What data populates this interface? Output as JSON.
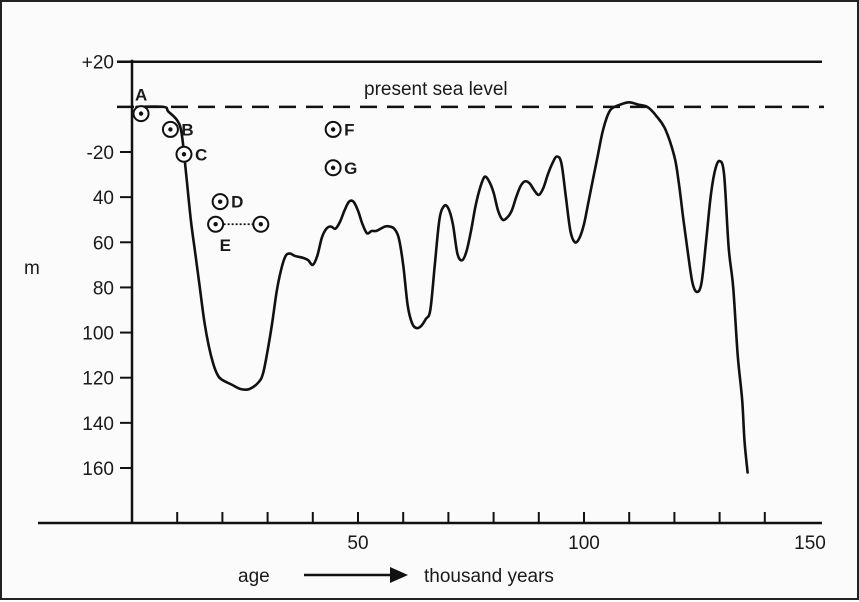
{
  "chart_data": {
    "type": "line",
    "xlabel": "age",
    "xlabel_unit": "thousand years",
    "ylabel": "m",
    "annotation": "present sea level",
    "xlim": [
      0,
      150
    ],
    "ylim": [
      -20,
      170
    ],
    "x_ticks": [
      {
        "value": 50,
        "label": "50"
      },
      {
        "value": 100,
        "label": "100"
      },
      {
        "value": 150,
        "label": "150"
      }
    ],
    "x_minor_ticks": [
      10,
      20,
      30,
      40,
      50,
      60,
      70,
      80,
      90,
      100,
      110,
      120,
      130,
      140
    ],
    "y_ticks": [
      {
        "value": -20,
        "label": "+20"
      },
      {
        "value": 20,
        "label": "-20"
      },
      {
        "value": 40,
        "label": "40"
      },
      {
        "value": 60,
        "label": "60"
      },
      {
        "value": 80,
        "label": "80"
      },
      {
        "value": 100,
        "label": "100"
      },
      {
        "value": 120,
        "label": "120"
      },
      {
        "value": 140,
        "label": "140"
      },
      {
        "value": 160,
        "label": "160"
      }
    ],
    "sea_level": 0,
    "series": [
      {
        "points": [
          [
            1,
            0
          ],
          [
            7,
            0
          ],
          [
            8,
            2
          ],
          [
            10,
            6
          ],
          [
            11,
            12
          ],
          [
            12,
            30
          ],
          [
            13,
            50
          ],
          [
            14,
            65
          ],
          [
            15,
            80
          ],
          [
            16,
            95
          ],
          [
            17,
            106
          ],
          [
            18,
            114
          ],
          [
            19,
            119
          ],
          [
            20,
            121
          ],
          [
            22,
            123
          ],
          [
            24,
            125
          ],
          [
            26,
            125
          ],
          [
            28,
            122
          ],
          [
            29,
            118
          ],
          [
            30,
            108
          ],
          [
            31,
            96
          ],
          [
            32,
            82
          ],
          [
            33,
            72
          ],
          [
            34,
            66
          ],
          [
            35,
            65
          ],
          [
            36,
            66
          ],
          [
            38,
            67
          ],
          [
            39,
            68
          ],
          [
            40,
            70
          ],
          [
            41,
            66
          ],
          [
            42,
            58
          ],
          [
            43,
            54
          ],
          [
            44,
            53
          ],
          [
            45,
            54
          ],
          [
            46,
            51
          ],
          [
            47,
            46
          ],
          [
            48,
            42
          ],
          [
            49,
            42
          ],
          [
            50,
            46
          ],
          [
            51,
            52
          ],
          [
            52,
            56
          ],
          [
            53,
            55
          ],
          [
            54,
            55
          ],
          [
            55,
            54
          ],
          [
            56,
            53
          ],
          [
            57,
            53
          ],
          [
            58,
            54
          ],
          [
            59,
            58
          ],
          [
            60,
            70
          ],
          [
            61,
            88
          ],
          [
            62,
            96
          ],
          [
            63,
            98
          ],
          [
            64,
            97
          ],
          [
            65,
            94
          ],
          [
            66,
            90
          ],
          [
            67,
            70
          ],
          [
            68,
            50
          ],
          [
            69,
            44
          ],
          [
            70,
            45
          ],
          [
            71,
            52
          ],
          [
            72,
            65
          ],
          [
            73,
            68
          ],
          [
            74,
            64
          ],
          [
            75,
            55
          ],
          [
            76,
            44
          ],
          [
            77,
            36
          ],
          [
            78,
            31
          ],
          [
            79,
            33
          ],
          [
            80,
            38
          ],
          [
            81,
            46
          ],
          [
            82,
            50
          ],
          [
            83,
            49
          ],
          [
            84,
            46
          ],
          [
            85,
            40
          ],
          [
            86,
            35
          ],
          [
            87,
            33
          ],
          [
            88,
            34
          ],
          [
            89,
            37
          ],
          [
            90,
            39
          ],
          [
            91,
            36
          ],
          [
            92,
            30
          ],
          [
            93,
            25
          ],
          [
            94,
            22
          ],
          [
            95,
            25
          ],
          [
            96,
            40
          ],
          [
            97,
            55
          ],
          [
            98,
            60
          ],
          [
            99,
            58
          ],
          [
            100,
            52
          ],
          [
            101,
            42
          ],
          [
            102,
            32
          ],
          [
            103,
            22
          ],
          [
            104,
            12
          ],
          [
            105,
            5
          ],
          [
            106,
            1
          ],
          [
            108,
            -1
          ],
          [
            110,
            -2
          ],
          [
            112,
            -1
          ],
          [
            114,
            0
          ],
          [
            116,
            4
          ],
          [
            118,
            10
          ],
          [
            120,
            22
          ],
          [
            121,
            34
          ],
          [
            122,
            50
          ],
          [
            123,
            65
          ],
          [
            124,
            78
          ],
          [
            125,
            82
          ],
          [
            126,
            78
          ],
          [
            127,
            60
          ],
          [
            128,
            40
          ],
          [
            129,
            28
          ],
          [
            130,
            24
          ],
          [
            131,
            30
          ],
          [
            132,
            62
          ],
          [
            133,
            80
          ],
          [
            134,
            110
          ],
          [
            135,
            130
          ],
          [
            135.5,
            148
          ],
          [
            136.2,
            162
          ]
        ]
      }
    ],
    "markers": [
      {
        "label": "A",
        "x": 2,
        "y": 3
      },
      {
        "label": "B",
        "x": 8.5,
        "y": 10
      },
      {
        "label": "C",
        "x": 11.5,
        "y": 21
      },
      {
        "label": "D",
        "x": 19.5,
        "y": 42
      },
      {
        "label": "E",
        "x": 18.5,
        "y": 52,
        "x_end": 28.5
      },
      {
        "label": "F",
        "x": 44.5,
        "y": 10
      },
      {
        "label": "G",
        "x": 44.5,
        "y": 27
      }
    ]
  }
}
